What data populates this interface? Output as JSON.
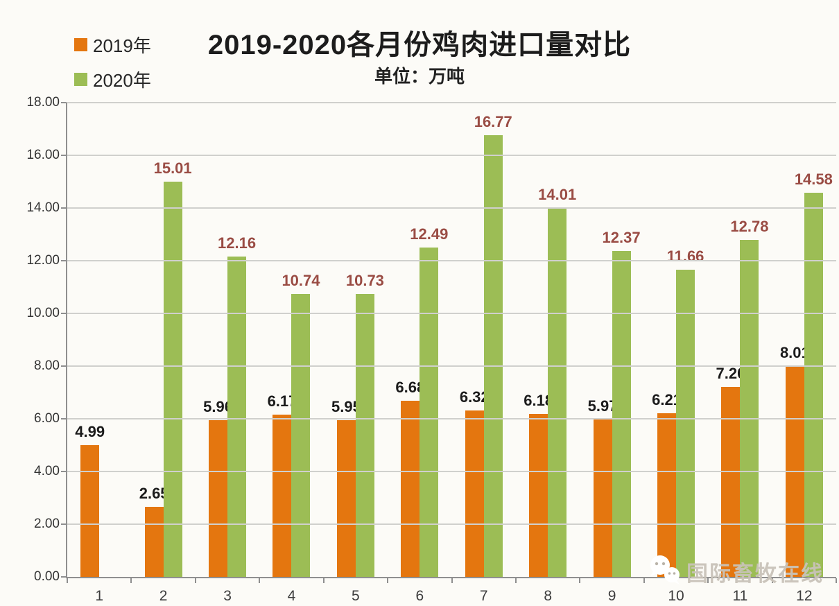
{
  "title": "2019-2020各月份鸡肉进口量对比",
  "subtitle": "单位：万吨",
  "legend": [
    {
      "label": "2019年",
      "color": "#e4760f"
    },
    {
      "label": "2020年",
      "color": "#9cbd55"
    }
  ],
  "watermark": {
    "text": "国际畜牧在线",
    "icon": "wechat-bubbles-icon"
  },
  "colors": {
    "background": "#fcfbf7",
    "axis": "#8f8f8f",
    "gridline": "#d0d0cd",
    "series_2019_bar": "#e4760f",
    "series_2020_bar": "#9cbd55",
    "series_2019_label": "#1b1b1b",
    "series_2020_label": "#9a4c44"
  },
  "chart_data": {
    "type": "bar",
    "title": "2019-2020各月份鸡肉进口量对比",
    "subtitle": "单位：万吨",
    "xlabel": "",
    "ylabel": "",
    "categories": [
      "1",
      "2",
      "3",
      "4",
      "5",
      "6",
      "7",
      "8",
      "9",
      "10",
      "11",
      "12"
    ],
    "series": [
      {
        "name": "2019年",
        "color": "#e4760f",
        "label_color": "#1b1b1b",
        "values": [
          4.99,
          2.65,
          5.96,
          6.17,
          5.95,
          6.68,
          6.32,
          6.18,
          5.97,
          6.21,
          7.2,
          8.01
        ]
      },
      {
        "name": "2020年",
        "color": "#9cbd55",
        "label_color": "#9a4c44",
        "values": [
          null,
          15.01,
          12.16,
          10.74,
          10.73,
          12.49,
          16.77,
          14.01,
          12.37,
          11.66,
          12.78,
          14.58
        ]
      }
    ],
    "ylim": [
      0,
      18
    ],
    "ytick_step": 2,
    "ytick_labels": [
      "0.00",
      "2.00",
      "4.00",
      "6.00",
      "8.00",
      "10.00",
      "12.00",
      "14.00",
      "16.00",
      "18.00"
    ],
    "grid": true,
    "legend_position": "top-left",
    "value_labels": true
  }
}
